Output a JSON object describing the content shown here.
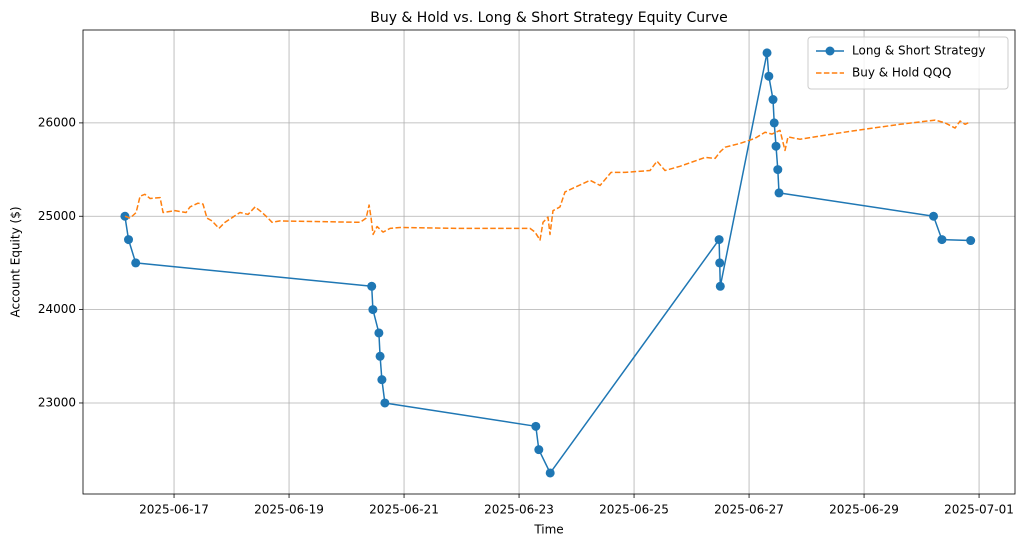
{
  "chart_data": {
    "type": "line",
    "title": "Buy & Hold vs. Long & Short Strategy Equity Curve",
    "x_label": "Time",
    "y_label": "Account Equity ($)",
    "xlim": [
      "2025-06-15T10:00",
      "2025-07-01T15:00"
    ],
    "xticks": [
      "2025-06-17",
      "2025-06-19",
      "2025-06-21",
      "2025-06-23",
      "2025-06-25",
      "2025-06-27",
      "2025-06-29",
      "2025-07-01"
    ],
    "ylim": [
      22025,
      26995
    ],
    "yticks": [
      23000,
      24000,
      25000,
      26000
    ],
    "grid": true,
    "legend": "upper right",
    "series": [
      {
        "name": "Long & Short Strategy",
        "color": "#1f77b4",
        "marker": "circle",
        "linestyle": "solid",
        "x": [
          "2025-06-16T03:30",
          "2025-06-16T05:00",
          "2025-06-16T08:00",
          "2025-06-20T10:30",
          "2025-06-20T11:00",
          "2025-06-20T13:30",
          "2025-06-20T14:00",
          "2025-06-20T14:45",
          "2025-06-20T16:00",
          "2025-06-23T07:00",
          "2025-06-23T08:15",
          "2025-06-23T13:00",
          "2025-06-26T11:30",
          "2025-06-26T11:45",
          "2025-06-26T12:00",
          "2025-06-27T07:30",
          "2025-06-27T08:15",
          "2025-06-27T10:00",
          "2025-06-27T10:30",
          "2025-06-27T11:15",
          "2025-06-27T12:00",
          "2025-06-27T12:30",
          "2025-06-30T05:00",
          "2025-06-30T08:30",
          "2025-06-30T20:30"
        ],
        "values": [
          25000,
          24750,
          24500,
          24250,
          24000,
          23750,
          23500,
          23250,
          23000,
          22750,
          22500,
          22250,
          24750,
          24500,
          24250,
          26750,
          26500,
          26250,
          26000,
          25750,
          25500,
          25250,
          25000,
          24750,
          24740
        ]
      },
      {
        "name": "Buy & Hold QQQ",
        "color": "#ff7f0e",
        "marker": "none",
        "linestyle": "dashed",
        "x": [
          "2025-06-16T03:30",
          "2025-06-16T05:40",
          "2025-06-16T08:10",
          "2025-06-16T09:50",
          "2025-06-16T11:50",
          "2025-06-16T14:00",
          "2025-06-16T18:10",
          "2025-06-16T19:25",
          "2025-06-17T00:25",
          "2025-06-17T05:00",
          "2025-06-17T06:40",
          "2025-06-17T10:00",
          "2025-06-17T12:05",
          "2025-06-17T13:45",
          "2025-06-17T15:50",
          "2025-06-17T18:45",
          "2025-06-17T21:15",
          "2025-06-18T03:30",
          "2025-06-18T06:55",
          "2025-06-18T09:50",
          "2025-06-18T12:45",
          "2025-06-18T14:50",
          "2025-06-18T16:55",
          "2025-06-18T20:15",
          "2025-06-20T05:40",
          "2025-06-20T08:10",
          "2025-06-20T09:25",
          "2025-06-20T10:15",
          "2025-06-20T11:05",
          "2025-06-20T12:45",
          "2025-06-20T15:15",
          "2025-06-20T18:10",
          "2025-06-20T22:20",
          "2025-06-21T23:20",
          "2025-06-23T04:35",
          "2025-06-23T06:40",
          "2025-06-23T08:45",
          "2025-06-23T10:00",
          "2025-06-23T12:05",
          "2025-06-23T12:55",
          "2025-06-23T14:10",
          "2025-06-23T17:05",
          "2025-06-23T19:10",
          "2025-06-23T23:20",
          "2025-06-24T05:40",
          "2025-06-24T09:50",
          "2025-06-24T14:25",
          "2025-06-24T20:15",
          "2025-06-25T06:40",
          "2025-06-25T09:35",
          "2025-06-25T12:55",
          "2025-06-25T19:10",
          "2025-06-26T05:40",
          "2025-06-26T09:50",
          "2025-06-26T11:55",
          "2025-06-26T14:00",
          "2025-06-26T20:15",
          "2025-06-27T02:30",
          "2025-06-27T06:40",
          "2025-06-27T09:35",
          "2025-06-27T12:55",
          "2025-06-27T15:00",
          "2025-06-27T16:15",
          "2025-06-27T21:15",
          "2025-06-28T18:10",
          "2025-06-29T15:00",
          "2025-06-30T05:40",
          "2025-06-30T09:50",
          "2025-06-30T14:00",
          "2025-06-30T16:05",
          "2025-06-30T18:10",
          "2025-06-30T20:15"
        ],
        "values": [
          25000,
          24980,
          25040,
          25215,
          25235,
          25190,
          25200,
          25040,
          25060,
          25040,
          25100,
          25140,
          25130,
          24980,
          24950,
          24870,
          24935,
          25040,
          25020,
          25100,
          25040,
          24990,
          24935,
          24950,
          24935,
          24980,
          25120,
          24980,
          24805,
          24890,
          24830,
          24870,
          24880,
          24870,
          24870,
          24830,
          24745,
          24935,
          24990,
          24805,
          25060,
          25100,
          25260,
          25310,
          25385,
          25330,
          25470,
          25470,
          25490,
          25590,
          25490,
          25535,
          25630,
          25620,
          25690,
          25740,
          25780,
          25835,
          25900,
          25880,
          25920,
          25705,
          25850,
          25825,
          25910,
          25985,
          26030,
          26000,
          25945,
          26020,
          25985,
          26010
        ]
      }
    ]
  }
}
